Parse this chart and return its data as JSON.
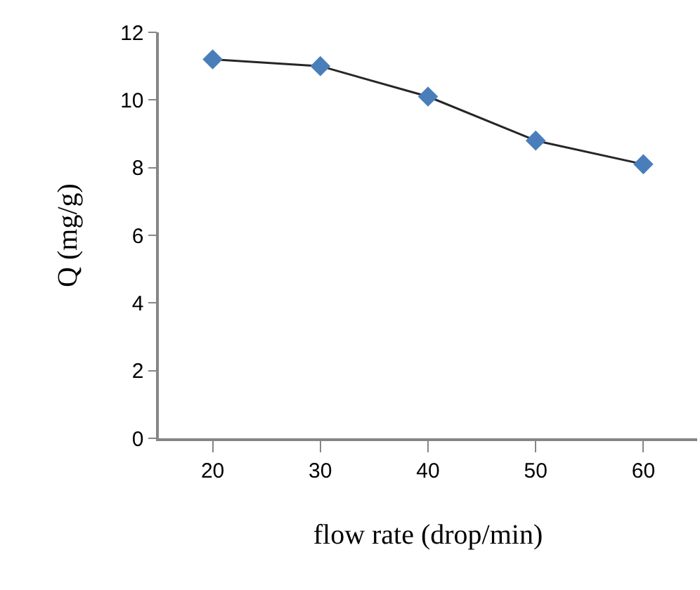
{
  "chart_data": {
    "type": "line",
    "xlabel": "flow rate (drop/min)",
    "ylabel": "Q (mg/g)",
    "categories": [
      "20",
      "30",
      "40",
      "50",
      "60"
    ],
    "series": [
      {
        "color": "#4a7ebb",
        "values": [
          11.2,
          11.0,
          10.1,
          8.8,
          8.1
        ]
      }
    ],
    "ylim": [
      0,
      12
    ],
    "yticks": [
      0,
      2,
      4,
      6,
      8,
      10,
      12
    ],
    "marker": "diamond",
    "line_style": "solid"
  }
}
